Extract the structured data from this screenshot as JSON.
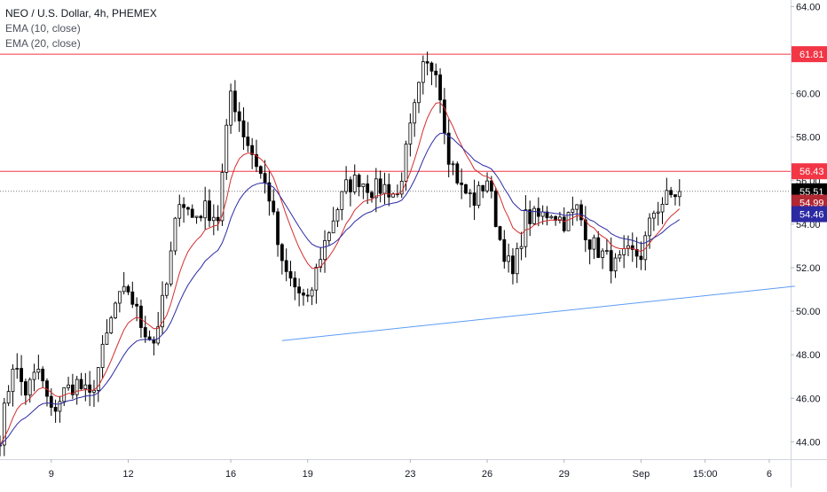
{
  "legend": {
    "symbol": "NEO / U.S. Dollar, 4h, PHEMEX",
    "ema1": "EMA (10, close)",
    "ema2": "EMA (20, close)"
  },
  "chart_data": {
    "type": "candlestick",
    "symbol": "NEO / U.S. Dollar",
    "interval": "4h",
    "exchange": "PHEMEX",
    "ylim": [
      43.2,
      64.3
    ],
    "y_ticks": [
      "44.00",
      "46.00",
      "48.00",
      "50.00",
      "52.00",
      "54.00",
      "56.00",
      "58.00",
      "60.00",
      "62.00",
      "64.00"
    ],
    "y_tick_values": [
      44,
      46,
      48,
      50,
      52,
      54,
      56,
      58,
      60,
      62,
      64
    ],
    "x_range": [
      0,
      185
    ],
    "x_ticks": [
      {
        "label": "9",
        "x": 12
      },
      {
        "label": "12",
        "x": 30
      },
      {
        "label": "16",
        "x": 54
      },
      {
        "label": "19",
        "x": 72
      },
      {
        "label": "23",
        "x": 96
      },
      {
        "label": "26",
        "x": 114
      },
      {
        "label": "29",
        "x": 132
      },
      {
        "label": "Sep",
        "x": 150
      },
      {
        "label": "15:00",
        "x": 165
      },
      {
        "label": "6",
        "x": 180
      }
    ],
    "horizontal_lines": [
      {
        "label": "61.81",
        "value": 61.81,
        "color": "#f23645"
      },
      {
        "label": "56.43",
        "value": 56.43,
        "color": "#f23645"
      }
    ],
    "price_tags": [
      {
        "label": "61.81",
        "value": 61.81,
        "color": "#f23645"
      },
      {
        "label": "56.43",
        "value": 56.43,
        "color": "#f23645"
      },
      {
        "label": "55.51",
        "value": 55.51,
        "color": "#000000"
      },
      {
        "label": "54.99",
        "value": 54.99,
        "color": "#b22833"
      },
      {
        "label": "54.46",
        "value": 54.46,
        "color": "#2c2aa3"
      }
    ],
    "last_price_line": {
      "value": 55.51,
      "color": "#787b86"
    },
    "trendline": {
      "x1": 66,
      "y1": 48.65,
      "x2": 186,
      "y2": 51.15,
      "color": "#5b9cf6"
    },
    "ema_series": [
      {
        "name": "EMA (10, close)",
        "color": "#d32f2f"
      },
      {
        "name": "EMA (20, close)",
        "color": "#2c2aa3"
      }
    ],
    "anchors": [
      [
        0,
        44.3
      ],
      [
        3,
        47.6
      ],
      [
        6,
        46.3
      ],
      [
        9,
        47.3
      ],
      [
        12,
        45.3
      ],
      [
        15,
        46.3
      ],
      [
        18,
        46.7
      ],
      [
        21,
        46.0
      ],
      [
        24,
        48.1
      ],
      [
        27,
        50.3
      ],
      [
        30,
        51.0
      ],
      [
        33,
        49.4
      ],
      [
        36,
        48.6
      ],
      [
        39,
        51.2
      ],
      [
        42,
        55.3
      ],
      [
        45,
        54.3
      ],
      [
        48,
        54.7
      ],
      [
        51,
        54.3
      ],
      [
        54,
        60.1
      ],
      [
        57,
        58.2
      ],
      [
        60,
        56.8
      ],
      [
        63,
        55.3
      ],
      [
        66,
        52.0
      ],
      [
        69,
        51.1
      ],
      [
        72,
        50.3
      ],
      [
        75,
        52.6
      ],
      [
        78,
        54.3
      ],
      [
        81,
        55.7
      ],
      [
        84,
        56.1
      ],
      [
        87,
        55.6
      ],
      [
        90,
        55.7
      ],
      [
        93,
        55.3
      ],
      [
        96,
        58.3
      ],
      [
        99,
        61.1
      ],
      [
        102,
        61.3
      ],
      [
        105,
        57.2
      ],
      [
        108,
        55.6
      ],
      [
        111,
        55.1
      ],
      [
        114,
        56.1
      ],
      [
        117,
        53.3
      ],
      [
        120,
        51.6
      ],
      [
        123,
        54.3
      ],
      [
        126,
        54.3
      ],
      [
        129,
        54.6
      ],
      [
        132,
        54.1
      ],
      [
        135,
        54.7
      ],
      [
        138,
        53.2
      ],
      [
        141,
        52.6
      ],
      [
        144,
        52.1
      ],
      [
        147,
        52.6
      ],
      [
        150,
        52.6
      ],
      [
        153,
        54.6
      ],
      [
        156,
        55.2
      ],
      [
        159,
        55.5
      ]
    ]
  }
}
